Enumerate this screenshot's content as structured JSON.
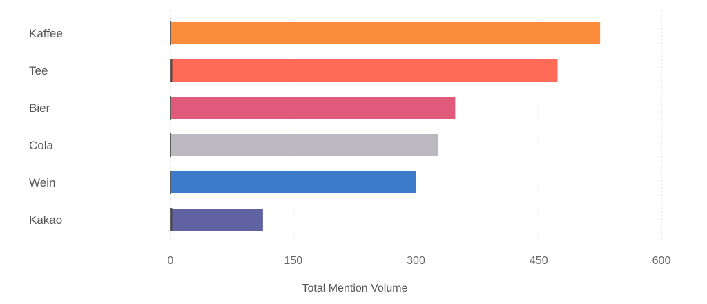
{
  "chart_data": {
    "type": "bar",
    "orientation": "horizontal",
    "categories": [
      "Kaffee",
      "Tee",
      "Bier",
      "Cola",
      "Wein",
      "Kakao"
    ],
    "values": [
      525,
      473,
      348,
      327,
      300,
      113
    ],
    "marker_values": [
      1.5,
      3,
      1.5,
      1,
      1.5,
      3
    ],
    "colors": [
      "#FB8C3C",
      "#FF6B57",
      "#E05A7B",
      "#BBB8BF",
      "#3C7ACC",
      "#6062A3"
    ],
    "marker_color": "#444444",
    "xlabel": "Total Mention Volume",
    "ylabel": "",
    "xlim": [
      0,
      600
    ],
    "xticks": [
      "0",
      "150",
      "300",
      "450",
      "600"
    ],
    "xtick_values": [
      0,
      150,
      300,
      450,
      600
    ],
    "grid": "vertical dotted",
    "legend": "none"
  }
}
